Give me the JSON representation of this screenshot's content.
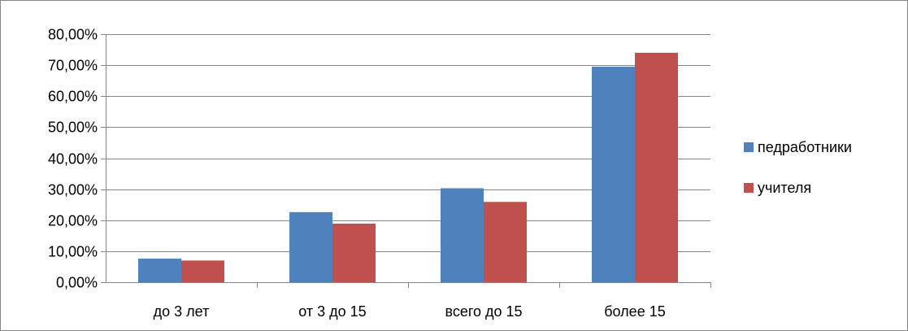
{
  "chart_data": {
    "type": "bar",
    "title": "",
    "xlabel": "",
    "ylabel": "",
    "categories": [
      "до 3 лет",
      "от 3 до 15",
      "всего до 15",
      "более 15"
    ],
    "series": [
      {
        "name": "педработники",
        "color": "#4f81bd",
        "values": [
          7.6,
          22.6,
          30.3,
          69.5
        ]
      },
      {
        "name": "учителя",
        "color": "#c0504d",
        "values": [
          7.0,
          18.9,
          25.9,
          74.0
        ]
      }
    ],
    "ylim": [
      0,
      80
    ],
    "yticks": [
      "0,00%",
      "10,00%",
      "20,00%",
      "30,00%",
      "40,00%",
      "50,00%",
      "60,00%",
      "70,00%",
      "80,00%"
    ],
    "grid": true,
    "legend_position": "right",
    "gridline_color": "#868686",
    "axis_color": "#868686",
    "border_color": "#868686"
  }
}
